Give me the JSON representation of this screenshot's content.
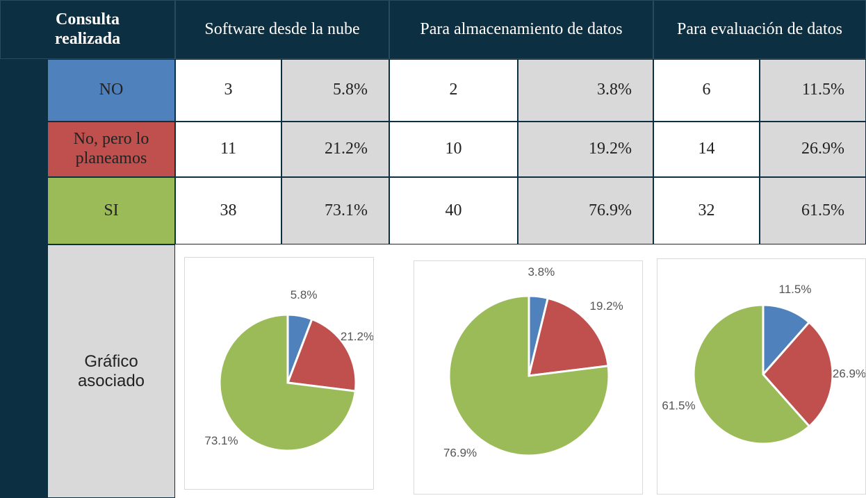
{
  "table": {
    "header": [
      "Consulta realizada",
      "Software desde la nube",
      "Para almacenamiento de datos",
      "Para evaluación de datos"
    ],
    "rows": [
      {
        "label": "NO",
        "cells": [
          "3",
          "5.8%",
          "2",
          "3.8%",
          "6",
          "11.5%"
        ]
      },
      {
        "label": "No, pero lo planeamos",
        "cells": [
          "11",
          "21.2%",
          "10",
          "19.2%",
          "14",
          "26.9%"
        ]
      },
      {
        "label": "SI",
        "cells": [
          "38",
          "73.1%",
          "40",
          "76.9%",
          "32",
          "61.5%"
        ]
      }
    ],
    "chart_row_label": "Gráfico asociado"
  },
  "charts": [
    {
      "type": "pie",
      "values": [
        5.8,
        21.2,
        73.1
      ],
      "value_labels": [
        "5.8%",
        "21.2%",
        "73.1%"
      ],
      "colors": [
        "#4f81bd",
        "#c0504d",
        "#9bbb59"
      ]
    },
    {
      "type": "pie",
      "values": [
        3.8,
        19.2,
        76.9
      ],
      "value_labels": [
        "3.8%",
        "19.2%",
        "76.9%"
      ],
      "colors": [
        "#4f81bd",
        "#c0504d",
        "#9bbb59"
      ]
    },
    {
      "type": "pie",
      "values": [
        11.5,
        26.9,
        61.5
      ],
      "value_labels": [
        "11.5%",
        "26.9%",
        "61.5%"
      ],
      "colors": [
        "#4f81bd",
        "#c0504d",
        "#9bbb59"
      ]
    }
  ]
}
